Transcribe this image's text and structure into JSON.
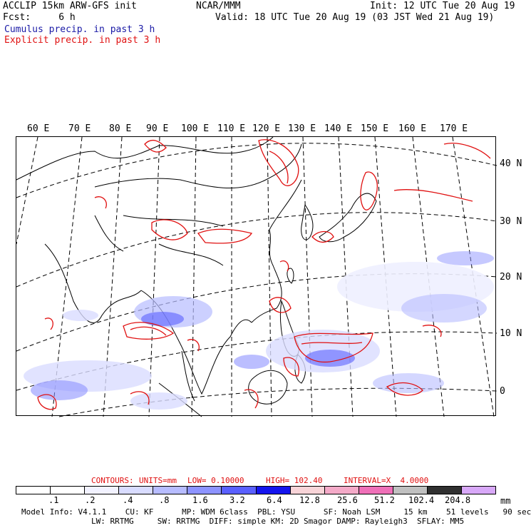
{
  "header": {
    "line1_left": "ACCLIP 15km ARW-GFS init",
    "line1_center": "NCAR/MMM",
    "line1_right": "Init: 12 UTC Tue 20 Aug 19",
    "line2_left": "Fcst:     6 h",
    "line2_right": "Valid: 18 UTC Tue 20 Aug 19 (03 JST Wed 21 Aug 19)",
    "line3": "Cumulus precip. in past 3 h",
    "line4": "Explicit precip. in past 3 h"
  },
  "map": {
    "lon_labels": [
      "60 E",
      "70 E",
      "80 E",
      "90 E",
      "100 E",
      "110 E",
      "120 E",
      "130 E",
      "140 E",
      "150 E",
      "160 E",
      "170 E"
    ],
    "lat_labels": [
      "40 N",
      "30 N",
      "20 N",
      "10 N",
      "0"
    ]
  },
  "contours": {
    "label_contours": "CONTOURS:",
    "label_units": "UNITS=mm",
    "label_low": "LOW= 0.10000",
    "label_high": "HIGH= 102.40",
    "label_interval": "INTERVAL=X  4.0000"
  },
  "legend": {
    "ticks": [
      ".1",
      ".2",
      ".4",
      ".8",
      "1.6",
      "3.2",
      "6.4",
      "12.8",
      "25.6",
      "51.2",
      "102.4",
      "204.8"
    ],
    "unit": "mm",
    "colors": [
      "#ffffff",
      "#ffffff",
      "#f2f2ff",
      "#d9dcff",
      "#b7bcff",
      "#8d93ff",
      "#5a60ff",
      "#1414ee",
      "#f8d4d8",
      "#f4aac8",
      "#ef70b8",
      "#c0c0c0",
      "#303030",
      "#d8a8f8"
    ]
  },
  "footer": {
    "line1": "Model Info: V4.1.1    CU: KF      MP: WDM 6class  PBL: YSU      SF: Noah LSM     15 km    51 levels   90 sec",
    "line2": "LW: RRTMG     SW: RRTMG  DIFF: simple KM: 2D Smagor DAMP: Rayleigh3  SFLAY: MM5"
  }
}
